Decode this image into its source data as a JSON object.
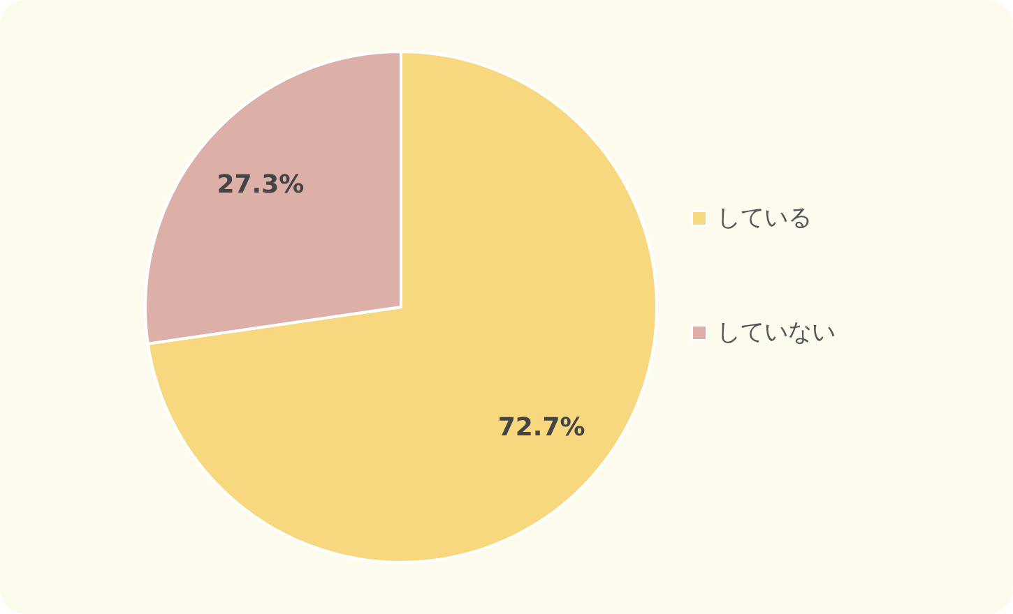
{
  "chart_data": {
    "type": "pie",
    "categories": [
      "している",
      "していない"
    ],
    "values": [
      72.7,
      27.3
    ],
    "colors": [
      "#f7d87f",
      "#dcb0a8"
    ],
    "value_labels": [
      "72.7%",
      "27.3%"
    ],
    "legend": "right"
  }
}
